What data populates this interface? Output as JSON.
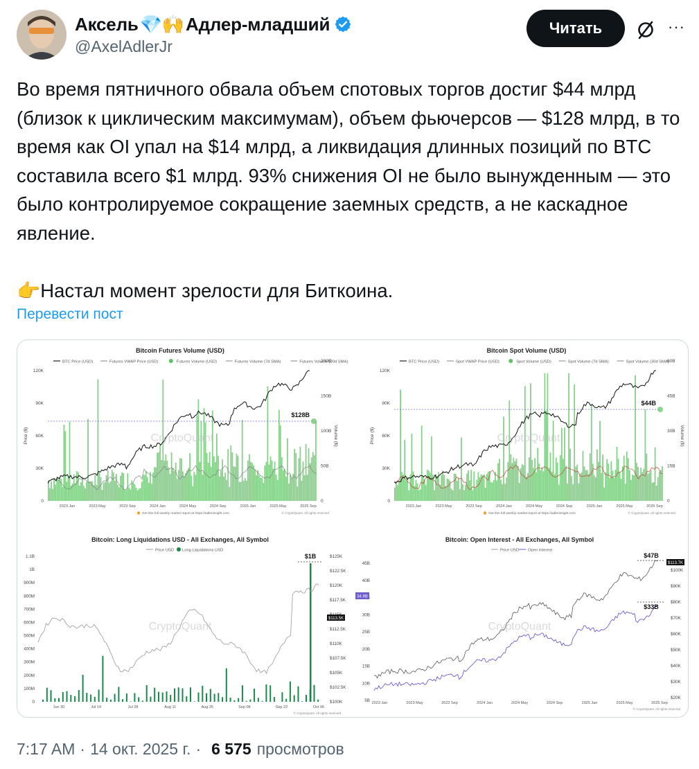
{
  "author": {
    "name_part1": "Аксель",
    "name_emoji": "💎🙌",
    "name_part2": "Адлер-младший",
    "handle": "@AxelAdlerJr"
  },
  "follow_label": "Читать",
  "more_label": "···",
  "post": {
    "p1": "Во время пятничного обвала объем спотовых торгов достиг $44 млрд (близок к циклическим максимумам), объем фьючерсов — $128 млрд, в то время как OI упал на $14 млрд, а ликвидация длинных позиций по BTC составила всего $1 млрд. 93% снижения OI не было вынужденным — это было контролируемое сокращение заемных средств, а не каскадное явление.",
    "p2_emoji": "👉",
    "p2": "Настал момент зрелости для Биткоина."
  },
  "translate_label": "Перевести пост",
  "footer": {
    "time": "7:17 AM",
    "date": "14 окт. 2025 г.",
    "views": "6 575",
    "views_label": "просмотров"
  },
  "colors": {
    "accent": "#1d9bf0",
    "green": "#5dc262",
    "dark_green": "#168a4a",
    "purple": "#6d5bd0"
  },
  "charts": [
    {
      "title": "Bitcoin Futures Volume (USD)",
      "legend": [
        "BTC Price (USD)",
        "Futures VWAP Price (USD)",
        "Futures Volume (USD)",
        "Futures Volume (7d SMA)",
        "Futures Volume (30d SMA)"
      ],
      "y_left": [
        "120K",
        "90K",
        "60K",
        "30K",
        "0"
      ],
      "y_right": [
        "200B",
        "150B",
        "100B",
        "50B",
        "0"
      ],
      "x_ticks": [
        "2023 Jan",
        "2023 May",
        "2023 Sep",
        "2024 Jan",
        "2024 May",
        "2024 Sep",
        "2025 Jan",
        "2025 May",
        "2025 Sep"
      ],
      "y_left_label": "Price ($)",
      "y_right_label": "Volume ($)",
      "annotation": "$128B",
      "watermark": "CryptoQuant",
      "footnote": "Get this full weekly market report at https://adlerinsight.com",
      "copyright": "© CryptoQuant. All rights reserved"
    },
    {
      "title": "Bitcoin Spot Volume (USD)",
      "legend": [
        "BTC Price (USD)",
        "Spot VWAP Price (USD)",
        "Spot Volume (USD)",
        "Spot Volume (7d SMA)",
        "Spot Volume (30d SMA)"
      ],
      "y_left": [
        "120K",
        "90K",
        "60K",
        "30K",
        "0"
      ],
      "y_right": [
        "60B",
        "45B",
        "30B",
        "15B",
        "0"
      ],
      "x_ticks": [
        "2023 Jan",
        "2023 May",
        "2023 Sep",
        "2024 Jan",
        "2024 May",
        "2024 Sep",
        "2025 Jan",
        "2025 May",
        "2025 Sep"
      ],
      "y_left_label": "Price ($)",
      "y_right_label": "Volume ($)",
      "annotation": "$44B",
      "watermark": "CryptoQuant",
      "footnote": "Get this full weekly market report at https://adlerinsight.com",
      "copyright": "© CryptoQuant. All rights reserved"
    },
    {
      "title": "Bitcoin: Long Liquidations USD - All Exchanges, All Symbol",
      "legend": [
        "Price USD",
        "Long Liquidations USD"
      ],
      "y_left": [
        "1.1B",
        "1B",
        "900M",
        "800M",
        "700M",
        "600M",
        "500M",
        "400M",
        "300M",
        "200M",
        "100M",
        "0"
      ],
      "y_right": [
        "$125K",
        "$122.5K",
        "$120K",
        "$117.5K",
        "$115K",
        "$112.5K",
        "$110K",
        "$107.5K",
        "$105K",
        "$102.5K",
        "$100K"
      ],
      "x_ticks": [
        "Jun 30",
        "Jul 14",
        "Jul 28",
        "Aug 11",
        "Aug 25",
        "Sep 08",
        "Sep 22",
        "Oct 06"
      ],
      "price_tag": "$113.5K",
      "annotation": "$1B",
      "watermark": "CryptoQuant",
      "copyright": "© CryptoQuant. All rights reserved"
    },
    {
      "title": "Bitcoin: Open Interest - All Exchanges, All Symbol",
      "legend": [
        "Price USD",
        "Open Interest"
      ],
      "y_left": [
        "45B",
        "40B",
        "35B",
        "30B",
        "25B",
        "20B",
        "15B",
        "10B",
        "5B"
      ],
      "y_right": [
        "$100K",
        "$90K",
        "$80K",
        "$70K",
        "$60K",
        "$50K",
        "$40K",
        "$30K",
        "$20K"
      ],
      "x_ticks": [
        "2023 Jan",
        "2023 May",
        "2023 Sep",
        "2024 Jan",
        "2024 May",
        "2024 Sep",
        "2025 Jan",
        "2025 May",
        "2025 Sep"
      ],
      "oi_tag": "34.9B",
      "price_tag": "$113.7K",
      "annotation_top": "$47B",
      "annotation_bottom": "$33B",
      "watermark": "CryptoQuant",
      "copyright": "© CryptoQuant. All rights reserved"
    }
  ]
}
